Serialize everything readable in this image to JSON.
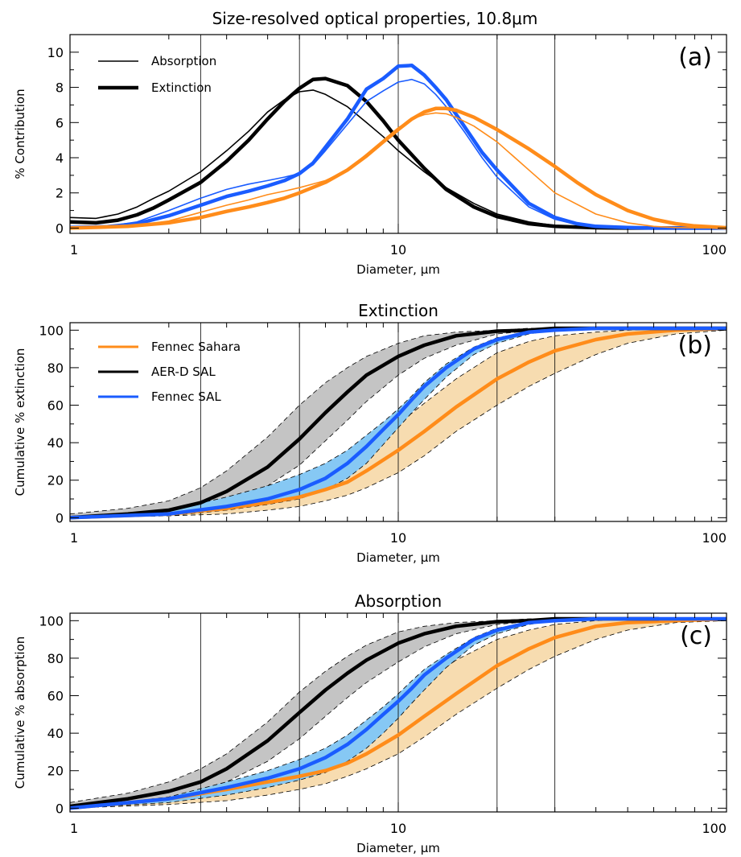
{
  "figure_title": "Size-resolved optical properties, 10.8μm",
  "colors": {
    "fennec_sahara": "#ff8c1a",
    "aerd_sal": "#000000",
    "fennec_sal": "#1a5cff",
    "sahara_band": "#f7dcb0",
    "aerd_band": "#c4c4c4",
    "sal_band": "#86c8f4"
  },
  "chart_data": [
    {
      "panel": "(a)",
      "type": "line",
      "title": "",
      "xlabel": "Diameter, μm",
      "ylabel": "% Contribution",
      "xscale": "log",
      "xlim": [
        1,
        100
      ],
      "ylim": [
        -0.3,
        11
      ],
      "x_ticks": [
        1,
        10,
        100
      ],
      "y_ticks": [
        0,
        2,
        4,
        6,
        8,
        10
      ],
      "vertical_lines": [
        2.5,
        5,
        10,
        20,
        30
      ],
      "legend": {
        "placement": "top-left",
        "entries": [
          {
            "label": "Absorption",
            "style": "thin"
          },
          {
            "label": "Extinction",
            "style": "thick"
          }
        ]
      },
      "series": [
        {
          "key": "aerd_sal",
          "style": "thin",
          "x": [
            1,
            1.2,
            1.4,
            1.6,
            1.8,
            2,
            2.5,
            3,
            3.5,
            4,
            4.5,
            5,
            5.5,
            6,
            7,
            8,
            9,
            10,
            12,
            14,
            17,
            20,
            25,
            30,
            40,
            50,
            60,
            80,
            100
          ],
          "y": [
            0.6,
            0.55,
            0.8,
            1.2,
            1.7,
            2.1,
            3.2,
            4.4,
            5.5,
            6.6,
            7.3,
            7.75,
            7.85,
            7.6,
            6.9,
            6.0,
            5.2,
            4.4,
            3.2,
            2.3,
            1.4,
            0.8,
            0.35,
            0.15,
            0.05,
            0.01,
            0,
            0,
            0
          ]
        },
        {
          "key": "aerd_sal",
          "style": "thick",
          "x": [
            1,
            1.2,
            1.4,
            1.6,
            1.8,
            2,
            2.5,
            3,
            3.5,
            4,
            4.5,
            5,
            5.5,
            6,
            7,
            8,
            9,
            10,
            12,
            14,
            17,
            20,
            25,
            30,
            40,
            50,
            60,
            80,
            100
          ],
          "y": [
            0.35,
            0.3,
            0.45,
            0.75,
            1.15,
            1.6,
            2.6,
            3.8,
            5.0,
            6.2,
            7.2,
            7.95,
            8.45,
            8.5,
            8.1,
            7.2,
            6.1,
            5.0,
            3.4,
            2.2,
            1.2,
            0.65,
            0.25,
            0.1,
            0.02,
            0,
            0,
            0,
            0
          ]
        },
        {
          "key": "fennec_sal",
          "style": "thin",
          "x": [
            1,
            1.3,
            1.6,
            2,
            2.5,
            3,
            3.5,
            4,
            4.5,
            5,
            5.5,
            6,
            7,
            8,
            9,
            10,
            11,
            12,
            13,
            14,
            16,
            18,
            20,
            25,
            30,
            35,
            40,
            50,
            60,
            80,
            100
          ],
          "y": [
            0.05,
            0.1,
            0.35,
            1.0,
            1.7,
            2.2,
            2.5,
            2.7,
            2.9,
            3.1,
            3.6,
            4.4,
            5.9,
            7.2,
            7.8,
            8.3,
            8.45,
            8.2,
            7.6,
            6.9,
            5.4,
            4.0,
            2.9,
            1.2,
            0.5,
            0.2,
            0.08,
            0.02,
            0,
            0,
            0
          ]
        },
        {
          "key": "fennec_sal",
          "style": "thick",
          "x": [
            1,
            1.3,
            1.6,
            2,
            2.5,
            3,
            3.5,
            4,
            4.5,
            5,
            5.5,
            6,
            7,
            8,
            9,
            10,
            11,
            12,
            13,
            14,
            16,
            18,
            20,
            25,
            30,
            35,
            40,
            50,
            60,
            80,
            100
          ],
          "y": [
            0.03,
            0.08,
            0.25,
            0.7,
            1.3,
            1.8,
            2.1,
            2.4,
            2.7,
            3.1,
            3.7,
            4.6,
            6.2,
            7.9,
            8.5,
            9.2,
            9.25,
            8.7,
            8.0,
            7.3,
            5.7,
            4.3,
            3.3,
            1.4,
            0.6,
            0.25,
            0.1,
            0.03,
            0,
            0,
            0
          ]
        },
        {
          "key": "fennec_sahara",
          "style": "thin",
          "x": [
            1,
            1.5,
            2,
            2.5,
            3,
            3.5,
            4,
            4.5,
            5,
            6,
            7,
            8,
            9,
            10,
            11,
            12,
            13,
            14,
            15,
            17,
            20,
            25,
            30,
            40,
            50,
            60,
            70,
            80,
            100
          ],
          "y": [
            0,
            0.1,
            0.4,
            0.9,
            1.3,
            1.6,
            1.9,
            2.1,
            2.3,
            2.7,
            3.3,
            4.2,
            5.0,
            5.7,
            6.2,
            6.45,
            6.55,
            6.5,
            6.3,
            5.8,
            4.9,
            3.3,
            2.0,
            0.8,
            0.3,
            0.1,
            0.03,
            0.01,
            0
          ]
        },
        {
          "key": "fennec_sahara",
          "style": "thick",
          "x": [
            1,
            1.5,
            2,
            2.5,
            3,
            3.5,
            4,
            4.5,
            5,
            6,
            7,
            8,
            9,
            10,
            11,
            12,
            13,
            14,
            15,
            17,
            20,
            25,
            30,
            35,
            40,
            50,
            60,
            70,
            80,
            100
          ],
          "y": [
            0,
            0.1,
            0.3,
            0.6,
            0.95,
            1.2,
            1.45,
            1.7,
            2.0,
            2.6,
            3.3,
            4.1,
            4.9,
            5.6,
            6.2,
            6.6,
            6.8,
            6.8,
            6.7,
            6.3,
            5.6,
            4.5,
            3.5,
            2.6,
            1.9,
            1.0,
            0.5,
            0.25,
            0.12,
            0.02
          ]
        }
      ]
    },
    {
      "panel": "(b)",
      "type": "area",
      "title": "Extinction",
      "xlabel": "Diameter, μm",
      "ylabel": "Cumulative % extinction",
      "xscale": "log",
      "xlim": [
        1,
        100
      ],
      "ylim": [
        -2,
        104
      ],
      "x_ticks": [
        1,
        10,
        100
      ],
      "y_ticks": [
        0,
        20,
        40,
        60,
        80,
        100
      ],
      "vertical_lines": [
        2.5,
        5,
        10,
        20,
        30
      ],
      "legend": {
        "placement": "top-left",
        "entries": [
          {
            "label": "Fennec Sahara",
            "key": "fennec_sahara"
          },
          {
            "label": "AER-D SAL",
            "key": "aerd_sal"
          },
          {
            "label": "Fennec SAL",
            "key": "fennec_sal"
          }
        ]
      },
      "series": [
        {
          "key": "fennec_sahara",
          "x": [
            1,
            2,
            3,
            4,
            5,
            6,
            7,
            8,
            10,
            12,
            15,
            20,
            25,
            30,
            40,
            50,
            70,
            100
          ],
          "y": [
            0,
            2,
            5,
            8,
            11,
            15,
            19,
            25,
            36,
            46,
            59,
            74,
            83,
            89,
            95,
            98,
            100,
            101
          ],
          "lower": [
            0,
            1,
            2,
            4,
            6,
            9,
            12,
            16,
            24,
            33,
            46,
            60,
            70,
            77,
            87,
            93,
            98,
            100
          ],
          "upper": [
            0,
            3,
            9,
            14,
            19,
            24,
            30,
            37,
            50,
            61,
            74,
            88,
            94,
            97,
            99,
            100,
            101,
            101
          ]
        },
        {
          "key": "aerd_sal",
          "x": [
            1,
            1.5,
            2,
            2.5,
            3,
            4,
            5,
            6,
            7,
            8,
            10,
            12,
            15,
            20,
            25,
            30,
            40,
            60,
            100
          ],
          "y": [
            0,
            2,
            4,
            8,
            14,
            27,
            42,
            56,
            67,
            76,
            86,
            92,
            97,
            99.5,
            100,
            101,
            101,
            101,
            101
          ],
          "lower": [
            0,
            1,
            2,
            4,
            8,
            17,
            28,
            41,
            52,
            62,
            76,
            85,
            92,
            98,
            99.5,
            100,
            101,
            101,
            101
          ],
          "upper": [
            2,
            5,
            9,
            16,
            25,
            43,
            60,
            72,
            80,
            86,
            93,
            97,
            99,
            100,
            101,
            101,
            101,
            101,
            101
          ]
        },
        {
          "key": "fennec_sal",
          "x": [
            1,
            2,
            3,
            4,
            5,
            6,
            7,
            8,
            9,
            10,
            11,
            12,
            14,
            17,
            20,
            25,
            30,
            40,
            100
          ],
          "y": [
            0,
            2,
            6,
            10,
            15,
            21,
            29,
            38,
            47,
            55,
            63,
            70,
            80,
            90,
            95,
            99,
            100,
            101,
            101
          ],
          "lower": [
            0,
            1,
            4,
            7,
            10,
            15,
            21,
            29,
            39,
            48,
            56,
            63,
            75,
            87,
            93,
            98,
            100,
            101,
            101
          ],
          "upper": [
            0,
            4,
            11,
            17,
            23,
            29,
            36,
            44,
            51,
            58,
            65,
            72,
            82,
            91,
            96,
            99,
            100,
            101,
            101
          ]
        }
      ]
    },
    {
      "panel": "(c)",
      "type": "area",
      "title": "Absorption",
      "xlabel": "Diameter, μm",
      "ylabel": "Cumulative % absorption",
      "xscale": "log",
      "xlim": [
        1,
        100
      ],
      "ylim": [
        -2,
        104
      ],
      "x_ticks": [
        1,
        10,
        100
      ],
      "y_ticks": [
        0,
        20,
        40,
        60,
        80,
        100
      ],
      "vertical_lines": [
        2.5,
        5,
        10,
        20,
        30
      ],
      "series": [
        {
          "key": "fennec_sahara",
          "x": [
            1,
            2,
            3,
            4,
            5,
            6,
            7,
            8,
            10,
            12,
            15,
            20,
            25,
            30,
            40,
            50,
            70,
            100
          ],
          "y": [
            0,
            5,
            10,
            14,
            17,
            20,
            24,
            29,
            39,
            49,
            61,
            76,
            85,
            91,
            97,
            99,
            100,
            101
          ],
          "lower": [
            0,
            2,
            4,
            7,
            10,
            13,
            17,
            21,
            29,
            38,
            50,
            64,
            74,
            81,
            90,
            95,
            99,
            100
          ],
          "upper": [
            0,
            5,
            12,
            18,
            24,
            31,
            38,
            46,
            57,
            67,
            79,
            90,
            95,
            98,
            100,
            101,
            101,
            101
          ]
        },
        {
          "key": "aerd_sal",
          "x": [
            1,
            1.5,
            2,
            2.5,
            3,
            4,
            5,
            6,
            7,
            8,
            10,
            12,
            15,
            20,
            25,
            30,
            40,
            50,
            62
          ],
          "y": [
            1,
            5,
            9,
            14,
            21,
            36,
            51,
            63,
            72,
            79,
            88,
            93,
            97,
            99.5,
            100,
            101,
            101,
            101,
            101
          ],
          "lower": [
            0,
            2,
            5,
            9,
            14,
            25,
            37,
            49,
            59,
            67,
            78,
            86,
            93,
            98,
            99.5,
            100,
            101,
            101,
            101
          ],
          "upper": [
            3,
            8,
            14,
            21,
            29,
            46,
            62,
            73,
            81,
            87,
            94,
            97,
            99,
            100,
            101,
            101,
            101,
            101,
            101
          ]
        },
        {
          "key": "fennec_sal",
          "x": [
            1,
            2,
            3,
            4,
            5,
            6,
            7,
            8,
            9,
            10,
            11,
            12,
            14,
            17,
            20,
            25,
            30,
            40,
            100
          ],
          "y": [
            0,
            5,
            11,
            16,
            21,
            27,
            34,
            42,
            50,
            57,
            64,
            71,
            80,
            90,
            95,
            99,
            100,
            101,
            101
          ],
          "lower": [
            0,
            3,
            7,
            11,
            15,
            19,
            25,
            32,
            40,
            48,
            56,
            63,
            75,
            87,
            93,
            98,
            100,
            101,
            101
          ],
          "upper": [
            0,
            6,
            14,
            20,
            26,
            32,
            39,
            47,
            54,
            61,
            68,
            74,
            82,
            91,
            96,
            99,
            100,
            101,
            101
          ]
        }
      ]
    }
  ],
  "panel_titles": [
    "",
    "Extinction",
    "Absorption"
  ],
  "panel_labels": [
    "(a)",
    "(b)",
    "(c)"
  ],
  "legend_a": [
    "Absorption",
    "Extinction"
  ],
  "legend_b": [
    "Fennec Sahara",
    "AER-D SAL",
    "Fennec SAL"
  ]
}
